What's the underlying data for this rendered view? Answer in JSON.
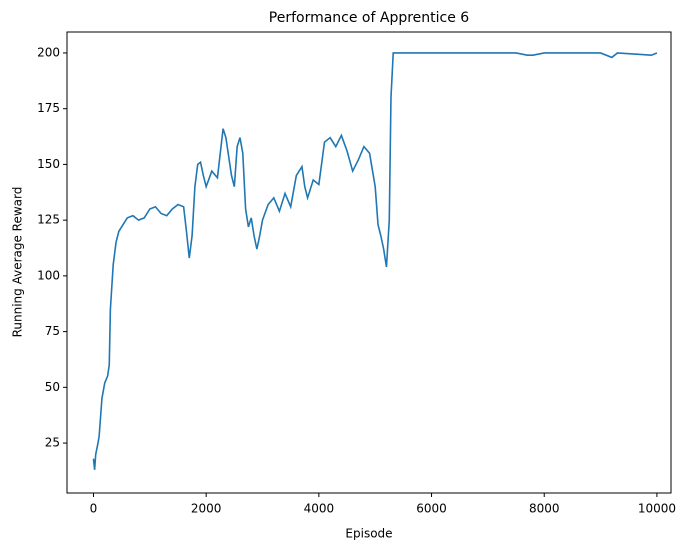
{
  "chart_data": {
    "type": "line",
    "title": "Performance of Apprentice 6",
    "x_label": "Episode",
    "y_label": "Running Average Reward",
    "x": [
      0,
      20,
      40,
      80,
      100,
      150,
      200,
      250,
      280,
      300,
      350,
      400,
      450,
      500,
      600,
      700,
      800,
      900,
      1000,
      1100,
      1200,
      1300,
      1400,
      1500,
      1600,
      1650,
      1700,
      1750,
      1800,
      1850,
      1900,
      1950,
      2000,
      2100,
      2200,
      2300,
      2350,
      2450,
      2500,
      2550,
      2600,
      2650,
      2700,
      2750,
      2800,
      2850,
      2900,
      2950,
      3000,
      3100,
      3200,
      3300,
      3400,
      3500,
      3600,
      3700,
      3750,
      3800,
      3900,
      4000,
      4100,
      4200,
      4300,
      4400,
      4500,
      4600,
      4700,
      4800,
      4900,
      5000,
      5050,
      5100,
      5150,
      5200,
      5250,
      5280,
      5320,
      5500,
      6000,
      7000,
      7500,
      7700,
      7800,
      8000,
      9000,
      9200,
      9300,
      9900,
      10000
    ],
    "series": [
      {
        "name": "Running Average Reward",
        "color": "#1f77b4",
        "values": [
          18,
          13,
          20,
          25,
          28,
          45,
          52,
          55,
          60,
          85,
          105,
          115,
          120,
          122,
          126,
          127,
          125,
          126,
          130,
          131,
          128,
          127,
          130,
          132,
          131,
          120,
          108,
          118,
          140,
          150,
          151,
          145,
          140,
          147,
          144,
          166,
          162,
          145,
          140,
          158,
          162,
          155,
          130,
          122,
          126,
          118,
          112,
          118,
          125,
          132,
          135,
          129,
          137,
          131,
          145,
          149,
          140,
          135,
          143,
          141,
          160,
          162,
          158,
          163,
          156,
          147,
          152,
          158,
          155,
          140,
          123,
          118,
          112,
          104,
          125,
          180,
          200,
          200,
          200,
          200,
          200,
          199,
          199,
          200,
          200,
          198,
          200,
          199,
          200
        ]
      }
    ],
    "xlim": [
      -470,
      10250
    ],
    "ylim": [
      2.6,
      209.4
    ],
    "xticks": [
      0,
      2000,
      4000,
      6000,
      8000,
      10000
    ],
    "yticks": [
      25,
      50,
      75,
      100,
      125,
      150,
      175,
      200
    ]
  }
}
